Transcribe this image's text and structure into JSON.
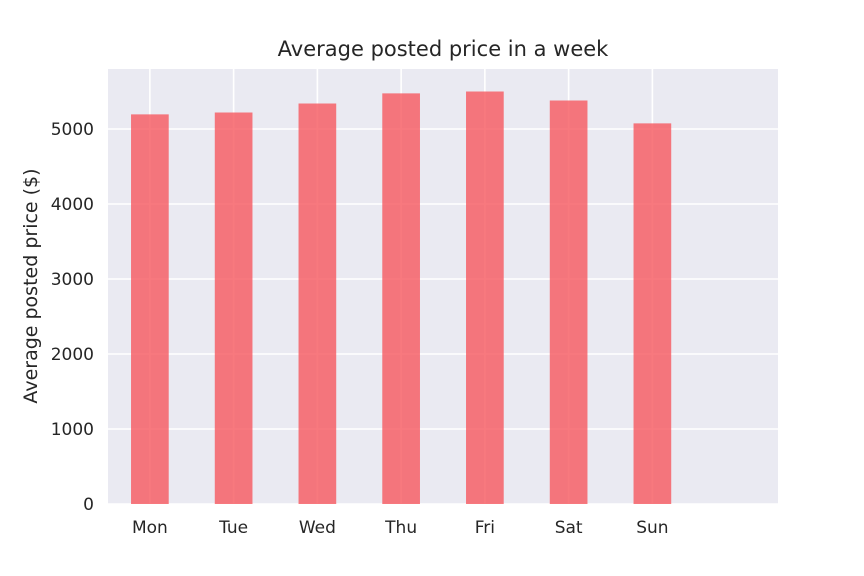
{
  "chart_data": {
    "type": "bar",
    "title": "Average posted price in a week",
    "xlabel": "",
    "ylabel": "Average posted price ($)",
    "categories": [
      "Mon",
      "Tue",
      "Wed",
      "Thu",
      "Fri",
      "Sat",
      "Sun"
    ],
    "values": [
      5195,
      5220,
      5340,
      5475,
      5500,
      5380,
      5075
    ],
    "ylim": [
      0,
      5800
    ],
    "xlim": [
      -0.5,
      7.5
    ],
    "yticks": [
      0,
      1000,
      2000,
      3000,
      4000,
      5000
    ],
    "grid": true,
    "bar_color": "#f65c62",
    "background_color": "#eaeaf2"
  }
}
